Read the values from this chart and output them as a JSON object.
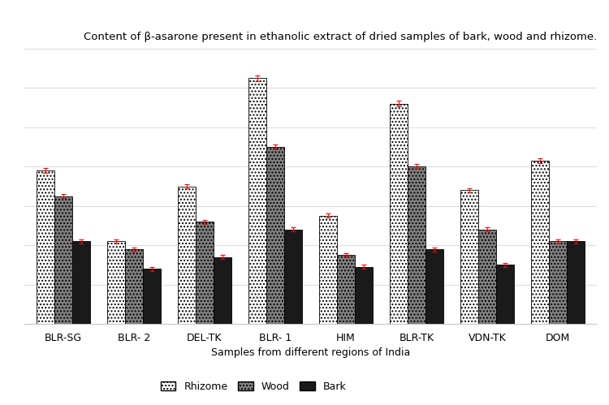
{
  "title": "Content of β-asarone present in ethanolic extract of dried samples of bark, wood and rhizome.",
  "xlabel": "Samples from different regions of India",
  "categories": [
    "BLR-SG",
    "BLR- 2",
    "DEL-TK",
    "BLR- 1",
    "HIM",
    "BLR-TK",
    "VDN-TK",
    "DOM"
  ],
  "rhizome": [
    7.8,
    4.2,
    7.0,
    12.5,
    5.5,
    11.2,
    6.8,
    8.3
  ],
  "wood": [
    6.5,
    3.8,
    5.2,
    9.0,
    3.5,
    8.0,
    4.8,
    4.2
  ],
  "bark": [
    4.2,
    2.8,
    3.4,
    4.8,
    2.9,
    3.8,
    3.0,
    4.2
  ],
  "rhizome_err": [
    0.12,
    0.1,
    0.1,
    0.15,
    0.1,
    0.15,
    0.1,
    0.12
  ],
  "wood_err": [
    0.1,
    0.1,
    0.1,
    0.12,
    0.1,
    0.12,
    0.1,
    0.1
  ],
  "bark_err": [
    0.1,
    0.1,
    0.1,
    0.1,
    0.1,
    0.1,
    0.1,
    0.1
  ],
  "background_color": "#ffffff",
  "ylim_max": 14.0,
  "ytick_interval": 2,
  "bar_width": 0.25,
  "title_fontsize": 9.5,
  "legend_fontsize": 9,
  "axis_fontsize": 9,
  "tick_fontsize": 9,
  "error_color": "red",
  "grid_color": "#dddddd"
}
